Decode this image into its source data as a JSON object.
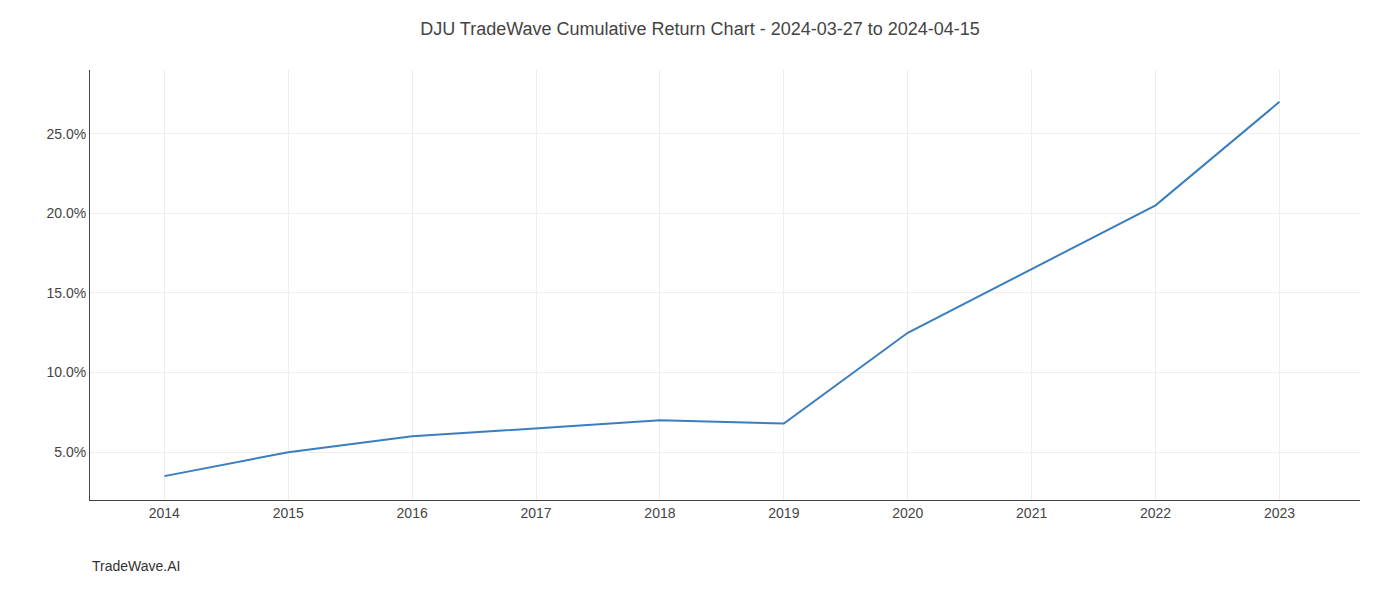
{
  "chart_data": {
    "type": "line",
    "title": "DJU TradeWave Cumulative Return Chart - 2024-03-27 to 2024-04-15",
    "annotations": [
      "TradeWave.AI"
    ],
    "x": [
      2014,
      2015,
      2016,
      2017,
      2018,
      2019,
      2020,
      2021,
      2022,
      2023
    ],
    "values": [
      3.5,
      5.0,
      6.0,
      6.5,
      7.0,
      6.8,
      12.5,
      16.5,
      20.5,
      27.0
    ],
    "color": "#3a7ebf",
    "xlim": [
      2013.4,
      2023.65
    ],
    "ylim": [
      2.0,
      29.0
    ],
    "xticks": [
      2014,
      2015,
      2016,
      2017,
      2018,
      2019,
      2020,
      2021,
      2022,
      2023
    ],
    "yticks": [
      {
        "value": 5.0,
        "label": "5.0%"
      },
      {
        "value": 10.0,
        "label": "10.0%"
      },
      {
        "value": 15.0,
        "label": "15.0%"
      },
      {
        "value": 20.0,
        "label": "20.0%"
      },
      {
        "value": 25.0,
        "label": "25.0%"
      }
    ],
    "grid": true
  }
}
